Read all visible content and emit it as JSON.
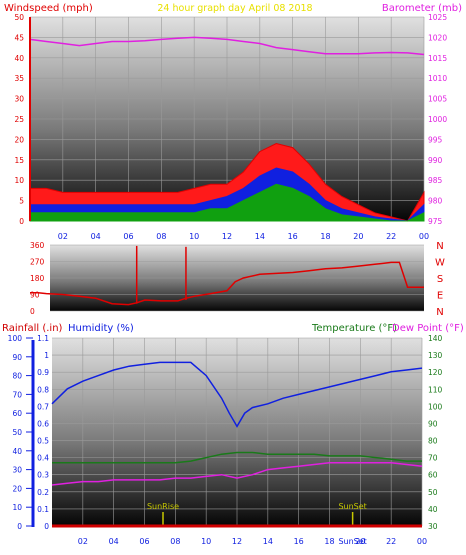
{
  "colors": {
    "wind": "#e00000",
    "gust_fill": "#ff1a1a",
    "wind_avg": "#1020e0",
    "wind_low": "#10a010",
    "barometer": "#e020e0",
    "direction": "#e00000",
    "rain": "#d00000",
    "humidity": "#1020e0",
    "temperature": "#1a7a1a",
    "dewpoint": "#e020e0",
    "sun_marker": "#c8c800"
  },
  "header": {
    "title": "24 hour graph day   April 08 2018",
    "wind_label": "Windspeed (mph)",
    "baro_label": "Barometer (mb)",
    "rain_label": "Rainfall (.in)",
    "humidity_label": "Humidity (%)",
    "temperature_label": "Temperature (°F)",
    "dewpoint_label": "Dew Point (°F)"
  },
  "chart_data": [
    {
      "type": "area",
      "name": "windspeed-barometer",
      "x_ticks": [
        "02",
        "04",
        "06",
        "08",
        "10",
        "12",
        "14",
        "16",
        "18",
        "20",
        "22",
        "00"
      ],
      "y_left_ticks": [
        "0",
        "5",
        "10",
        "15",
        "20",
        "25",
        "30",
        "35",
        "40",
        "45",
        "50"
      ],
      "ylim_left": [
        0,
        50
      ],
      "y_right_ticks": [
        "975",
        "980",
        "985",
        "990",
        "995",
        "1000",
        "1005",
        "1010",
        "1015",
        "1020",
        "1025"
      ],
      "ylim_right": [
        975,
        1025
      ],
      "series": [
        {
          "key": "gust",
          "x": [
            0,
            1,
            2,
            3,
            4,
            5,
            6,
            7,
            8,
            9,
            10,
            11,
            12,
            13,
            14,
            15,
            16,
            17,
            18,
            19,
            20,
            21,
            22,
            23,
            24
          ],
          "values": [
            8,
            8,
            7,
            7,
            7,
            7,
            7,
            7,
            7,
            7,
            8,
            9,
            9,
            12,
            17,
            19,
            18,
            14,
            9,
            6,
            4,
            2,
            1,
            0,
            7
          ]
        },
        {
          "key": "avg",
          "x": [
            0,
            1,
            2,
            3,
            4,
            5,
            6,
            7,
            8,
            9,
            10,
            11,
            12,
            13,
            14,
            15,
            16,
            17,
            18,
            19,
            20,
            21,
            22,
            23,
            24
          ],
          "values": [
            4,
            4,
            4,
            4,
            4,
            4,
            4,
            4,
            4,
            4,
            4,
            5,
            6,
            8,
            11,
            13,
            12,
            9,
            5,
            3,
            2,
            1,
            0.5,
            0,
            4
          ]
        },
        {
          "key": "low",
          "x": [
            0,
            1,
            2,
            3,
            4,
            5,
            6,
            7,
            8,
            9,
            10,
            11,
            12,
            13,
            14,
            15,
            16,
            17,
            18,
            19,
            20,
            21,
            22,
            23,
            24
          ],
          "values": [
            2,
            2,
            2,
            2,
            2,
            2,
            2,
            2,
            2,
            2,
            2,
            3,
            3,
            5,
            7,
            9,
            8,
            6,
            3,
            1.5,
            1,
            0.5,
            0,
            0,
            2
          ]
        },
        {
          "key": "barometer",
          "x": [
            0,
            1,
            2,
            3,
            4,
            5,
            6,
            7,
            8,
            9,
            10,
            11,
            12,
            13,
            14,
            15,
            16,
            17,
            18,
            19,
            20,
            21,
            22,
            23,
            24
          ],
          "values": [
            1019.5,
            1019,
            1018.5,
            1018,
            1018.5,
            1019,
            1019,
            1019.2,
            1019.5,
            1019.8,
            1020,
            1019.8,
            1019.5,
            1019,
            1018.5,
            1017.5,
            1017,
            1016.5,
            1016,
            1016,
            1016,
            1016.2,
            1016.3,
            1016.2,
            1015.8
          ]
        }
      ]
    },
    {
      "type": "line",
      "name": "wind-direction",
      "y_ticks": [
        "360",
        "270",
        "180",
        "90",
        "0"
      ],
      "ylim": [
        0,
        360
      ],
      "compass": [
        "N",
        "W",
        "S",
        "E",
        "N"
      ],
      "series": [
        {
          "key": "direction",
          "x": [
            0,
            0.5,
            1,
            2,
            3,
            4,
            5,
            6,
            6.5,
            7,
            8,
            9,
            9.5,
            10,
            11,
            12,
            12.5,
            13,
            14,
            15,
            16,
            17,
            18,
            19,
            20,
            21,
            22,
            22.5,
            23,
            24
          ],
          "values": [
            100,
            100,
            95,
            90,
            80,
            70,
            40,
            35,
            45,
            60,
            55,
            55,
            70,
            80,
            95,
            110,
            160,
            180,
            200,
            205,
            210,
            220,
            230,
            235,
            245,
            255,
            265,
            265,
            130,
            130
          ]
        }
      ]
    },
    {
      "type": "line",
      "name": "rain-humidity-temperature",
      "x_ticks": [
        "02",
        "04",
        "06",
        "08",
        "10",
        "12",
        "14",
        "16",
        "18",
        "20",
        "22",
        "00"
      ],
      "rain_ticks": [
        "0",
        "0.1",
        "0.2",
        "0.3",
        "0.4",
        "0.5",
        "0.6",
        "0.7",
        "0.8",
        "0.9",
        "1",
        "1.1"
      ],
      "humidity_ticks": [
        "0",
        "10",
        "20",
        "30",
        "40",
        "50",
        "60",
        "70",
        "80",
        "90",
        "100"
      ],
      "temp_ticks": [
        "30",
        "40",
        "50",
        "60",
        "70",
        "80",
        "90",
        "100",
        "110",
        "120",
        "130",
        "140"
      ],
      "ylim_rain": [
        0,
        1.1
      ],
      "ylim_humidity": [
        0,
        100
      ],
      "ylim_temp": [
        30,
        140
      ],
      "sunrise_label": "SunRise",
      "sunset_label": "SunSet",
      "sunrise_x": 7.2,
      "sunset_x": 19.5,
      "series": [
        {
          "key": "humidity",
          "x": [
            0,
            1,
            2,
            3,
            4,
            5,
            6,
            7,
            8,
            9,
            10,
            11,
            11.5,
            12,
            12.5,
            13,
            14,
            15,
            16,
            17,
            18,
            19,
            20,
            21,
            22,
            23,
            24
          ],
          "values": [
            65,
            73,
            77,
            80,
            83,
            85,
            86,
            87,
            87,
            87,
            80,
            68,
            60,
            53,
            60,
            63,
            65,
            68,
            70,
            72,
            74,
            76,
            78,
            80,
            82,
            83,
            84
          ]
        },
        {
          "key": "temperature",
          "x": [
            0,
            1,
            2,
            3,
            4,
            5,
            6,
            7,
            8,
            9,
            10,
            11,
            12,
            13,
            14,
            15,
            16,
            17,
            18,
            19,
            20,
            21,
            22,
            23,
            24
          ],
          "values": [
            67,
            67,
            67,
            67,
            67,
            67,
            67,
            67,
            67,
            68,
            70,
            72,
            73,
            73,
            72,
            72,
            72,
            72,
            71,
            71,
            71,
            70,
            69,
            68,
            68
          ]
        },
        {
          "key": "dewpoint",
          "x": [
            0,
            1,
            2,
            3,
            4,
            5,
            6,
            7,
            8,
            9,
            10,
            11,
            12,
            13,
            14,
            15,
            16,
            17,
            18,
            19,
            20,
            21,
            22,
            23,
            24
          ],
          "values": [
            54,
            55,
            56,
            56,
            57,
            57,
            57,
            57,
            58,
            58,
            59,
            60,
            58,
            60,
            63,
            64,
            65,
            66,
            67,
            67,
            67,
            67,
            67,
            66,
            65
          ]
        },
        {
          "key": "rain",
          "x": [
            0,
            24
          ],
          "values": [
            0,
            0
          ]
        }
      ]
    }
  ]
}
